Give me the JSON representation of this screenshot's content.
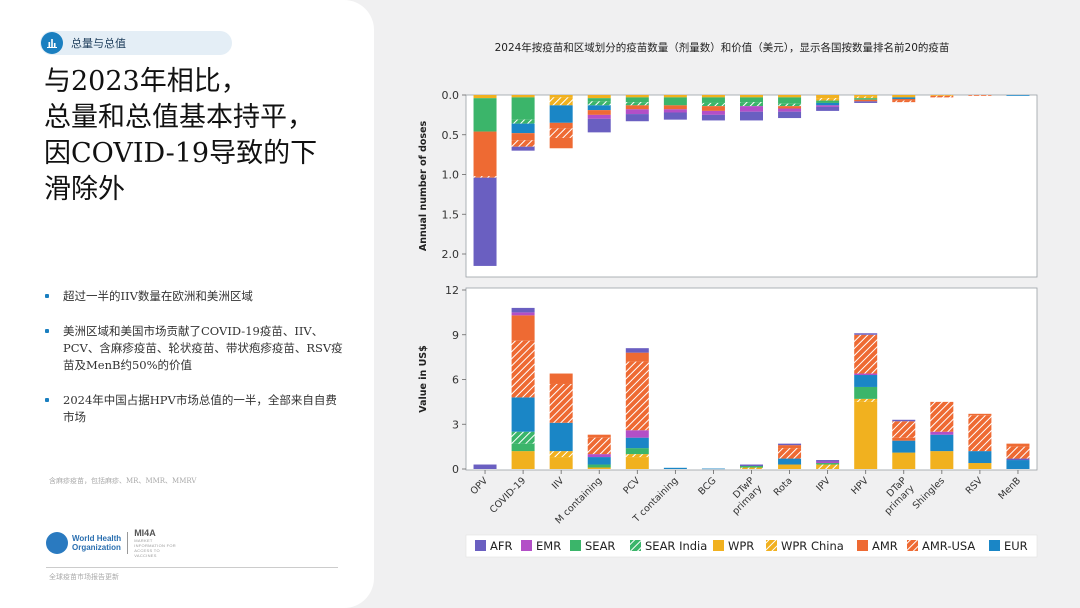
{
  "section_tag": {
    "label": "总量与总值",
    "icon": "bar-chart-icon"
  },
  "headline": [
    "与2023年相比，",
    "总量和总值基本持平，",
    "因COVID-19导致的下",
    "滑除外"
  ],
  "bullets": [
    "超过一半的IIV数量在欧洲和美洲区域",
    "美洲区域和美国市场贡献了COVID-19疫苗、IIV、PCV、含麻疹疫苗、轮状疫苗、带状疱疹疫苗、RSV疫苗及MenB约50%的价值",
    "2024年中国占据HPV市场总值的一半，全部来自自费市场"
  ],
  "footnote": "含麻疹疫苗，包括麻疹、MR、MMR、MMRV",
  "logos": {
    "who": [
      "World Health",
      "Organization"
    ],
    "mi4a": "MI4A",
    "mi4a_sub": "MARKET INFORMATION FOR ACCESS TO VACCINES"
  },
  "source": "全球疫苗市场报告更新",
  "colors": {
    "AFR": "#6a5fc1",
    "EMR": "#b34fc7",
    "SEAR": "#3bb56a",
    "SEAR India": "#3bb56a",
    "WPR": "#f1b11f",
    "WPR China": "#f1b11f",
    "AMR": "#ee6a33",
    "AMR-USA": "#ee6a33",
    "EUR": "#1a86c6",
    "hatch_line": "#ffffff"
  },
  "chart_data": {
    "type": "bar",
    "title": "2024年按疫苗和区域划分的疫苗数量（剂量数）和价值（美元），显示各国按数量排名前20的疫苗",
    "categories": [
      "OPV",
      "COVID-19",
      "IIV",
      "M containing",
      "PCV",
      "T containing",
      "BCG",
      "DTwP primary",
      "Rota",
      "IPV",
      "HPV",
      "DTaP primary",
      "Shingles",
      "RSV",
      "MenB"
    ],
    "legend": [
      {
        "name": "AFR",
        "hatched": false
      },
      {
        "name": "EMR",
        "hatched": false
      },
      {
        "name": "SEAR",
        "hatched": false
      },
      {
        "name": "SEAR India",
        "hatched": true
      },
      {
        "name": "WPR",
        "hatched": false
      },
      {
        "name": "WPR China",
        "hatched": true
      },
      {
        "name": "AMR",
        "hatched": false
      },
      {
        "name": "AMR-USA",
        "hatched": true
      },
      {
        "name": "EUR",
        "hatched": false
      }
    ],
    "panels": [
      {
        "ylabel": "Annual number of doses",
        "ylim": [
          0,
          2.25
        ],
        "yticks": [
          "0.0",
          "0.5",
          "1.0",
          "1.5",
          "2.0"
        ],
        "ytick_values": [
          0,
          0.5,
          1.0,
          1.5,
          2.0
        ],
        "inverted": true,
        "stacks": [
          [
            {
              "r": "WPR",
              "v": 0.04
            },
            {
              "r": "SEAR",
              "v": 0.42
            },
            {
              "r": "AMR",
              "v": 0.56
            },
            {
              "r": "AMR-USA",
              "v": 0.02
            },
            {
              "r": "AFR",
              "v": 1.11
            }
          ],
          [
            {
              "r": "WPR",
              "v": 0.03
            },
            {
              "r": "SEAR",
              "v": 0.28
            },
            {
              "r": "SEAR India",
              "v": 0.05
            },
            {
              "r": "EUR",
              "v": 0.12
            },
            {
              "r": "AMR",
              "v": 0.09
            },
            {
              "r": "AMR-USA",
              "v": 0.08
            },
            {
              "r": "AFR",
              "v": 0.05
            }
          ],
          [
            {
              "r": "WPR",
              "v": 0.03
            },
            {
              "r": "WPR China",
              "v": 0.1
            },
            {
              "r": "EUR",
              "v": 0.22
            },
            {
              "r": "AMR",
              "v": 0.07
            },
            {
              "r": "AMR-USA",
              "v": 0.12
            },
            {
              "r": "AMR",
              "v": 0.13
            }
          ],
          [
            {
              "r": "WPR",
              "v": 0.04
            },
            {
              "r": "SEAR",
              "v": 0.04
            },
            {
              "r": "SEAR India",
              "v": 0.05
            },
            {
              "r": "EUR",
              "v": 0.06
            },
            {
              "r": "AMR",
              "v": 0.06
            },
            {
              "r": "EMR",
              "v": 0.05
            },
            {
              "r": "AFR",
              "v": 0.17
            }
          ],
          [
            {
              "r": "WPR",
              "v": 0.03
            },
            {
              "r": "SEAR",
              "v": 0.06
            },
            {
              "r": "SEAR India",
              "v": 0.04
            },
            {
              "r": "AMR",
              "v": 0.05
            },
            {
              "r": "EMR",
              "v": 0.06
            },
            {
              "r": "AFR",
              "v": 0.09
            }
          ],
          [
            {
              "r": "WPR",
              "v": 0.03
            },
            {
              "r": "SEAR",
              "v": 0.1
            },
            {
              "r": "AMR",
              "v": 0.05
            },
            {
              "r": "EMR",
              "v": 0.04
            },
            {
              "r": "AFR",
              "v": 0.09
            }
          ],
          [
            {
              "r": "WPR",
              "v": 0.03
            },
            {
              "r": "SEAR",
              "v": 0.07
            },
            {
              "r": "SEAR India",
              "v": 0.04
            },
            {
              "r": "AMR",
              "v": 0.06
            },
            {
              "r": "EMR",
              "v": 0.05
            },
            {
              "r": "AFR",
              "v": 0.07
            }
          ],
          [
            {
              "r": "WPR",
              "v": 0.03
            },
            {
              "r": "SEAR",
              "v": 0.06
            },
            {
              "r": "SEAR India",
              "v": 0.05
            },
            {
              "r": "EMR",
              "v": 0.07
            },
            {
              "r": "AFR",
              "v": 0.11
            }
          ],
          [
            {
              "r": "WPR",
              "v": 0.03
            },
            {
              "r": "SEAR",
              "v": 0.08
            },
            {
              "r": "SEAR India",
              "v": 0.03
            },
            {
              "r": "AMR",
              "v": 0.03
            },
            {
              "r": "EMR",
              "v": 0.04
            },
            {
              "r": "AFR",
              "v": 0.08
            }
          ],
          [
            {
              "r": "WPR",
              "v": 0.04
            },
            {
              "r": "WPR China",
              "v": 0.03
            },
            {
              "r": "SEAR",
              "v": 0.03
            },
            {
              "r": "EUR",
              "v": 0.03
            },
            {
              "r": "EMR",
              "v": 0.02
            },
            {
              "r": "AFR",
              "v": 0.05
            }
          ],
          [
            {
              "r": "WPR",
              "v": 0.02
            },
            {
              "r": "WPR China",
              "v": 0.02
            },
            {
              "r": "SEAR",
              "v": 0.02
            },
            {
              "r": "AMR",
              "v": 0.02
            },
            {
              "r": "AFR",
              "v": 0.02
            }
          ],
          [
            {
              "r": "WPR",
              "v": 0.03
            },
            {
              "r": "EUR",
              "v": 0.02
            },
            {
              "r": "AMR",
              "v": 0.02
            },
            {
              "r": "AMR-USA",
              "v": 0.02
            }
          ],
          [
            {
              "r": "WPR",
              "v": 0.01
            },
            {
              "r": "AMR-USA",
              "v": 0.02
            }
          ],
          [
            {
              "r": "AMR-USA",
              "v": 0.01
            }
          ],
          [
            {
              "r": "EUR",
              "v": 0.01
            }
          ]
        ]
      },
      {
        "ylabel": "Value in US$",
        "ylim": [
          0,
          12
        ],
        "yticks": [
          "0",
          "3",
          "6",
          "9",
          "12"
        ],
        "ytick_values": [
          0,
          3,
          6,
          9,
          12
        ],
        "inverted": false,
        "stacks": [
          [
            {
              "r": "AFR",
              "v": 0.3
            }
          ],
          [
            {
              "r": "WPR",
              "v": 1.2
            },
            {
              "r": "SEAR",
              "v": 0.5
            },
            {
              "r": "SEAR India",
              "v": 0.8
            },
            {
              "r": "EUR",
              "v": 2.3
            },
            {
              "r": "AMR-USA",
              "v": 3.8
            },
            {
              "r": "AMR",
              "v": 1.7
            },
            {
              "r": "EMR",
              "v": 0.2
            },
            {
              "r": "AFR",
              "v": 0.3
            }
          ],
          [
            {
              "r": "WPR",
              "v": 0.8
            },
            {
              "r": "WPR China",
              "v": 0.4
            },
            {
              "r": "EUR",
              "v": 1.9
            },
            {
              "r": "AMR-USA",
              "v": 2.6
            },
            {
              "r": "AMR",
              "v": 0.7
            }
          ],
          [
            {
              "r": "WPR",
              "v": 0.1
            },
            {
              "r": "SEAR",
              "v": 0.2
            },
            {
              "r": "EUR",
              "v": 0.5
            },
            {
              "r": "EMR",
              "v": 0.2
            },
            {
              "r": "AMR-USA",
              "v": 1.1
            },
            {
              "r": "AMR",
              "v": 0.2
            }
          ],
          [
            {
              "r": "WPR",
              "v": 0.8
            },
            {
              "r": "WPR China",
              "v": 0.2
            },
            {
              "r": "SEAR",
              "v": 0.4
            },
            {
              "r": "EUR",
              "v": 0.7
            },
            {
              "r": "EMR",
              "v": 0.5
            },
            {
              "r": "AMR-USA",
              "v": 4.6
            },
            {
              "r": "AMR",
              "v": 0.6
            },
            {
              "r": "AFR",
              "v": 0.3
            }
          ],
          [
            {
              "r": "EUR",
              "v": 0.08
            }
          ],
          [
            {
              "r": "EUR",
              "v": 0.03
            }
          ],
          [
            {
              "r": "WPR China",
              "v": 0.1
            },
            {
              "r": "SEAR",
              "v": 0.1
            },
            {
              "r": "AFR",
              "v": 0.1
            }
          ],
          [
            {
              "r": "WPR",
              "v": 0.3
            },
            {
              "r": "EUR",
              "v": 0.4
            },
            {
              "r": "AMR-USA",
              "v": 0.7
            },
            {
              "r": "AMR",
              "v": 0.2
            },
            {
              "r": "AFR",
              "v": 0.1
            }
          ],
          [
            {
              "r": "WPR China",
              "v": 0.3
            },
            {
              "r": "SEAR",
              "v": 0.1
            },
            {
              "r": "EMR",
              "v": 0.1
            },
            {
              "r": "AFR",
              "v": 0.1
            }
          ],
          [
            {
              "r": "WPR",
              "v": 4.5
            },
            {
              "r": "WPR China",
              "v": 0.2
            },
            {
              "r": "SEAR",
              "v": 0.8
            },
            {
              "r": "EUR",
              "v": 0.8
            },
            {
              "r": "EMR",
              "v": 0.1
            },
            {
              "r": "AMR-USA",
              "v": 2.6
            },
            {
              "r": "AFR",
              "v": 0.1
            }
          ],
          [
            {
              "r": "WPR",
              "v": 1.1
            },
            {
              "r": "EUR",
              "v": 0.8
            },
            {
              "r": "AMR",
              "v": 0.2
            },
            {
              "r": "AMR-USA",
              "v": 1.1
            },
            {
              "r": "AFR",
              "v": 0.1
            }
          ],
          [
            {
              "r": "WPR",
              "v": 1.2
            },
            {
              "r": "EUR",
              "v": 1.1
            },
            {
              "r": "EMR",
              "v": 0.2
            },
            {
              "r": "AMR-USA",
              "v": 2.0
            }
          ],
          [
            {
              "r": "WPR",
              "v": 0.4
            },
            {
              "r": "EUR",
              "v": 0.8
            },
            {
              "r": "AMR-USA",
              "v": 2.4
            },
            {
              "r": "AMR",
              "v": 0.1
            }
          ],
          [
            {
              "r": "EUR",
              "v": 0.6
            },
            {
              "r": "AFR",
              "v": 0.1
            },
            {
              "r": "AMR-USA",
              "v": 0.8
            },
            {
              "r": "AMR",
              "v": 0.2
            }
          ]
        ]
      }
    ]
  }
}
